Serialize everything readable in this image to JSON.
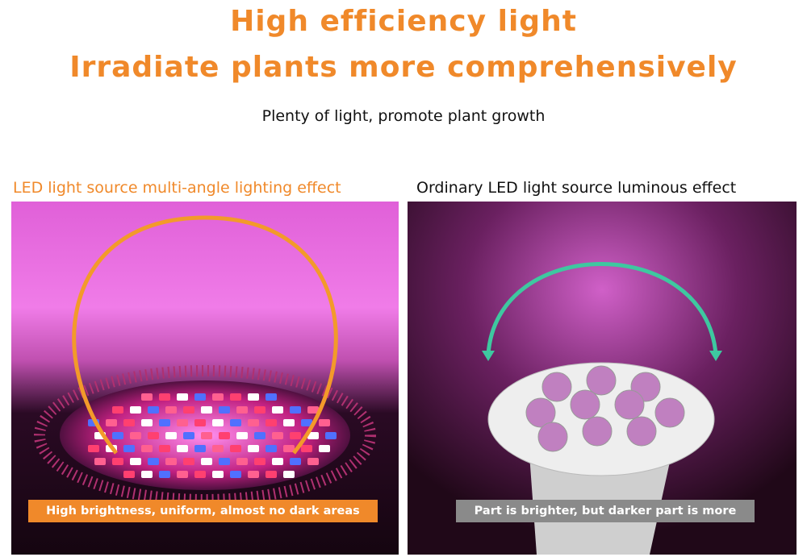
{
  "header": {
    "title_lines": [
      "High efficiency light",
      "Irradiate plants more comprehensively"
    ],
    "subtitle": "Plenty of light, promote plant growth"
  },
  "panels": [
    {
      "heading": "LED light source multi-angle lighting effect",
      "caption": "High brightness, uniform, almost no dark areas"
    },
    {
      "heading": "Ordinary LED light source luminous effect",
      "caption": "Part is brighter, but darker part is more"
    }
  ]
}
